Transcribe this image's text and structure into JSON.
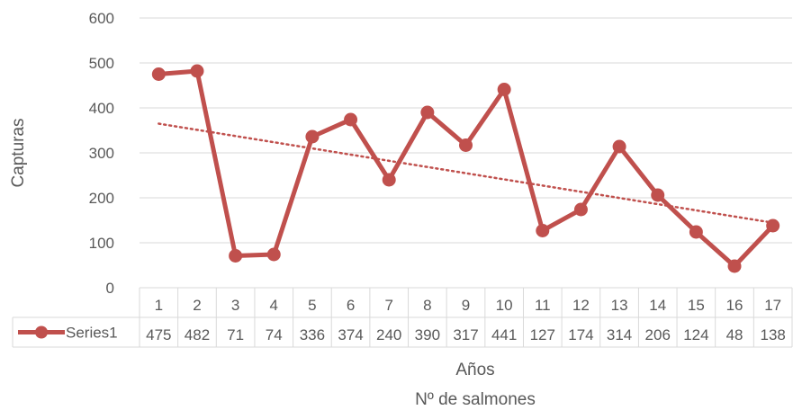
{
  "chart_data": {
    "type": "line",
    "title": "",
    "xlabel": "Años",
    "xlabel2": "Nº de salmones",
    "ylabel": "Capturas",
    "ylim": [
      0,
      600
    ],
    "yticks": [
      0,
      100,
      200,
      300,
      400,
      500,
      600
    ],
    "grid": true,
    "data_table": true,
    "trendline": "linear",
    "categories": [
      "1",
      "2",
      "3",
      "4",
      "5",
      "6",
      "7",
      "8",
      "9",
      "10",
      "11",
      "12",
      "13",
      "14",
      "15",
      "16",
      "17"
    ],
    "series": [
      {
        "name": "Series1",
        "color": "#c0504d",
        "values": [
          475,
          482,
          71,
          74,
          336,
          374,
          240,
          390,
          317,
          441,
          127,
          174,
          314,
          206,
          124,
          48,
          138
        ]
      }
    ]
  }
}
